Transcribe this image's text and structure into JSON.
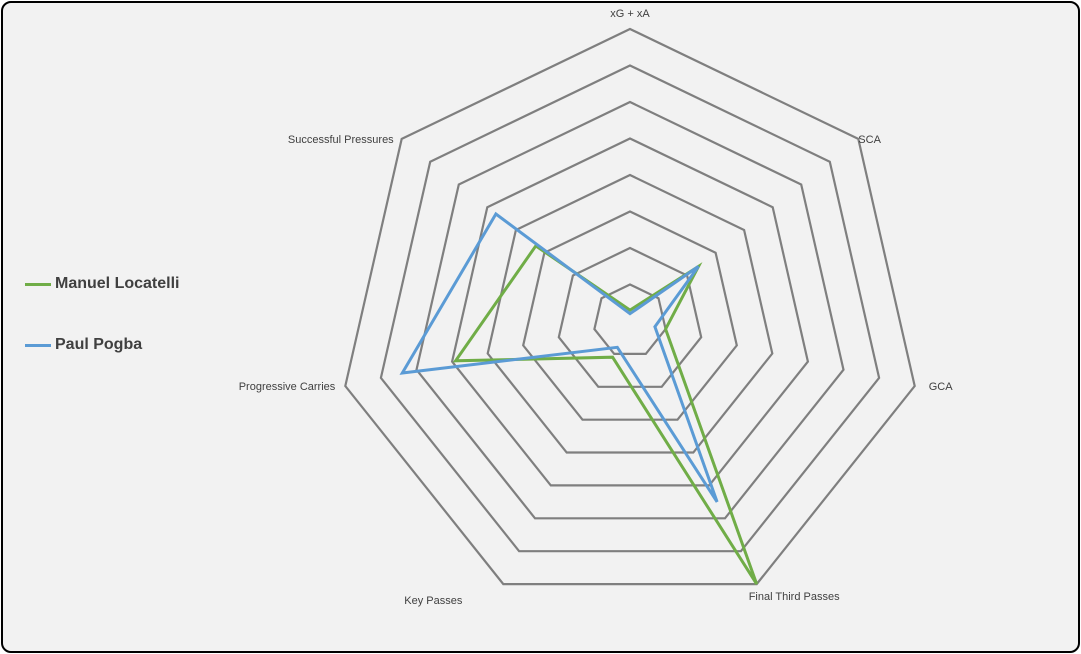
{
  "chart_data": {
    "type": "radar",
    "title": "",
    "axes": [
      "xG + xA",
      "SCA",
      "GCA",
      "Final Third Passes",
      "Key Passes",
      "Progressive Carries",
      "Successful Pressures"
    ],
    "rings": 8,
    "range": [
      0,
      8
    ],
    "grid": true,
    "legend_position": "left",
    "series": [
      {
        "name": "Manuel Locatelli",
        "color": "#70ad47",
        "values": [
          0.3,
          2.4,
          1.0,
          8.0,
          1.1,
          4.9,
          3.3
        ]
      },
      {
        "name": "Paul Pogba",
        "color": "#5b9bd5",
        "values": [
          0.2,
          2.4,
          0.7,
          5.5,
          0.8,
          6.4,
          4.7
        ]
      }
    ]
  }
}
